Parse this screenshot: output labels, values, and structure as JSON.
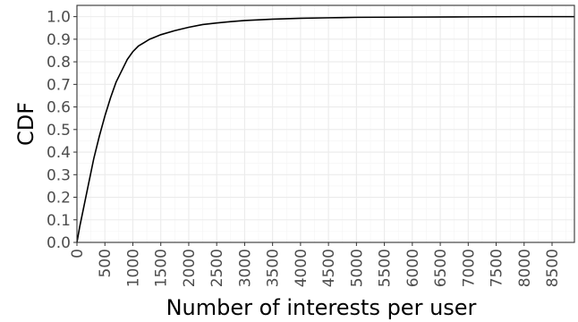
{
  "chart_data": {
    "type": "line",
    "title": "",
    "xlabel": "Number of interests per user",
    "ylabel": "CDF",
    "xlim": [
      0,
      8900
    ],
    "ylim": [
      0,
      1.05
    ],
    "grid": true,
    "legend": "none",
    "x_ticks": [
      0,
      500,
      1000,
      1500,
      2000,
      2500,
      3000,
      3500,
      4000,
      4500,
      5000,
      5500,
      6000,
      6500,
      7000,
      7500,
      8000,
      8500
    ],
    "x_tick_labels": [
      "0",
      "500",
      "1000",
      "1500",
      "2000",
      "2500",
      "3000",
      "3500",
      "4000",
      "4500",
      "5000",
      "5500",
      "6000",
      "6500",
      "7000",
      "7500",
      "8000",
      "8500"
    ],
    "y_ticks": [
      0,
      0.1,
      0.2,
      0.3,
      0.4,
      0.5,
      0.6,
      0.7,
      0.8,
      0.9,
      1.0
    ],
    "y_tick_labels": [
      "0.0",
      "0.1",
      "0.2",
      "0.3",
      "0.4",
      "0.5",
      "0.6",
      "0.7",
      "0.8",
      "0.9",
      "1.0"
    ],
    "series": [
      {
        "color": "#000000",
        "x": [
          0,
          50,
          100,
          200,
          300,
          400,
          500,
          600,
          700,
          800,
          900,
          1000,
          1100,
          1200,
          1300,
          1400,
          1500,
          1750,
          2000,
          2250,
          2500,
          2750,
          3000,
          3500,
          4000,
          4500,
          5000,
          6000,
          7000,
          8000,
          8900
        ],
        "y": [
          0.0,
          0.07,
          0.13,
          0.25,
          0.37,
          0.47,
          0.56,
          0.64,
          0.71,
          0.76,
          0.81,
          0.845,
          0.87,
          0.885,
          0.9,
          0.91,
          0.92,
          0.938,
          0.953,
          0.965,
          0.972,
          0.978,
          0.983,
          0.989,
          0.993,
          0.995,
          0.997,
          0.998,
          0.999,
          1.0,
          1.0
        ]
      }
    ]
  }
}
